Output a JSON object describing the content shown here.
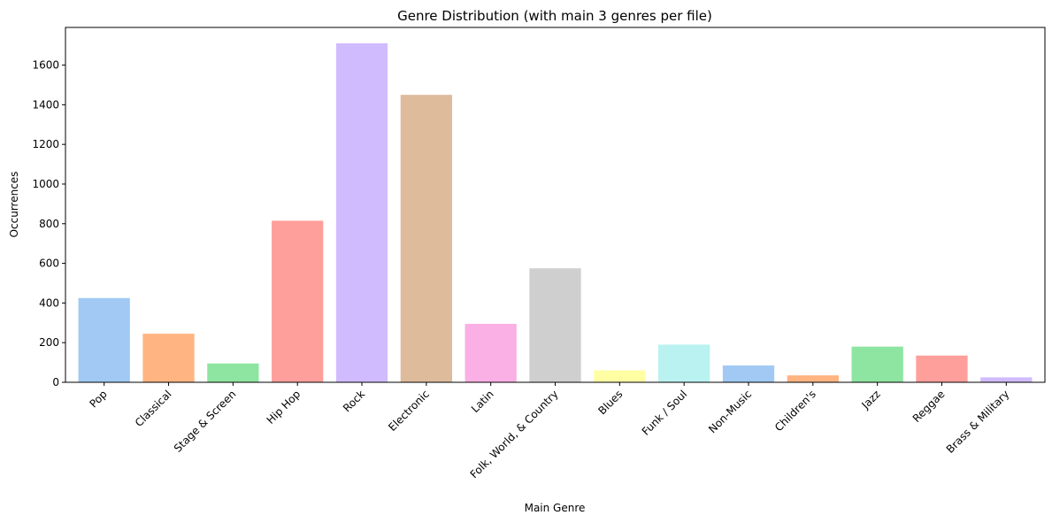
{
  "chart_data": {
    "type": "bar",
    "title": "Genre Distribution (with main 3 genres per file)",
    "xlabel": "Main Genre",
    "ylabel": "Occurrences",
    "ylim": [
      0,
      1790
    ],
    "yticks": [
      0,
      200,
      400,
      600,
      800,
      1000,
      1200,
      1400,
      1600
    ],
    "grid": false,
    "categories": [
      "Pop",
      "Classical",
      "Stage & Screen",
      "Hip Hop",
      "Rock",
      "Electronic",
      "Latin",
      "Folk, World, & Country",
      "Blues",
      "Funk / Soul",
      "Non-Music",
      "Children's",
      "Jazz",
      "Reggae",
      "Brass & Military"
    ],
    "values": [
      425,
      245,
      95,
      815,
      1710,
      1450,
      295,
      575,
      60,
      190,
      85,
      35,
      180,
      135,
      25
    ],
    "colors": [
      "#a1c9f4",
      "#ffb482",
      "#8de5a1",
      "#ff9f9b",
      "#d0bbff",
      "#debb9b",
      "#fab0e4",
      "#cfcfcf",
      "#fffea3",
      "#b9f2f0",
      "#a1c9f4",
      "#ffb482",
      "#8de5a1",
      "#ff9f9b",
      "#d0bbff"
    ]
  }
}
